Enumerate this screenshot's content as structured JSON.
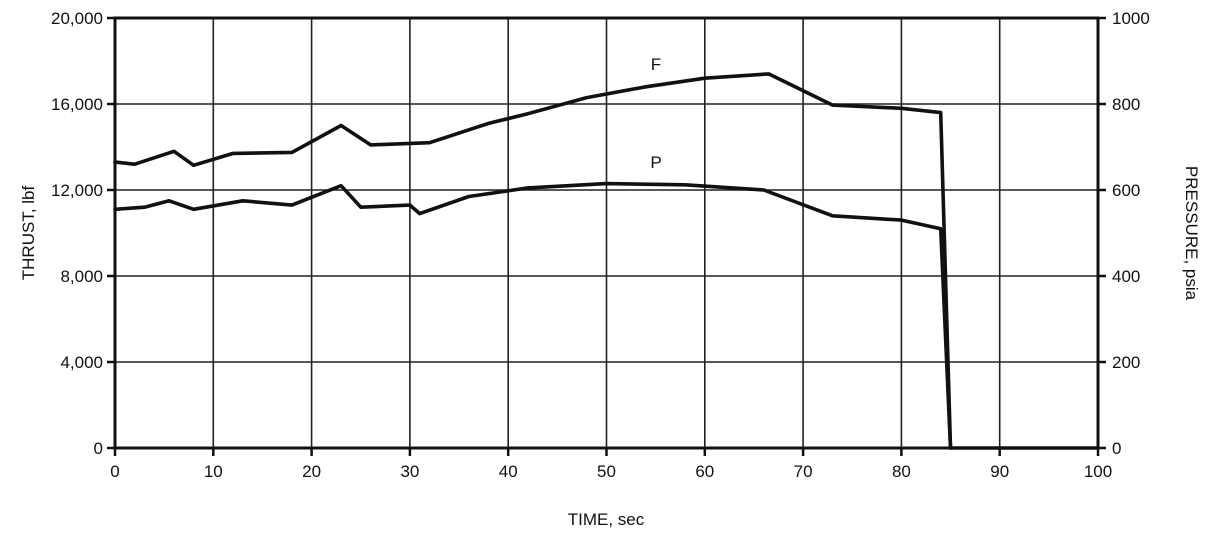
{
  "chart_data": {
    "type": "line",
    "xlabel": "TIME, sec",
    "ylabel_left": "THRUST, lbf",
    "ylabel_right": "PRESSURE, psia",
    "x_ticks": [
      "0",
      "10",
      "20",
      "30",
      "40",
      "50",
      "60",
      "70",
      "80",
      "90",
      "100"
    ],
    "y_left_ticks": [
      "0",
      "4,000",
      "8,000",
      "12,000",
      "16,000",
      "20,000"
    ],
    "y_right_ticks": [
      "0",
      "200",
      "400",
      "600",
      "800",
      "1000"
    ],
    "xlim": [
      0,
      100
    ],
    "ylim_left": [
      0,
      20000
    ],
    "ylim_right": [
      0,
      1000
    ],
    "grid": true,
    "series": [
      {
        "name": "F",
        "axis": "left",
        "x": [
          0,
          2,
          6,
          8,
          12,
          18,
          23,
          26,
          32,
          38,
          42,
          48,
          54,
          60,
          66.5,
          73,
          80,
          84,
          85
        ],
        "y": [
          13300,
          13200,
          13800,
          13150,
          13700,
          13750,
          15000,
          14100,
          14200,
          15100,
          15550,
          16300,
          16800,
          17200,
          17400,
          15950,
          15800,
          15600,
          0
        ]
      },
      {
        "name": "P",
        "axis": "right",
        "x": [
          0,
          3,
          5.5,
          8,
          13,
          18,
          23,
          25,
          30,
          31,
          36,
          42,
          50,
          58,
          66,
          73,
          80,
          84,
          85
        ],
        "y": [
          555,
          560,
          575,
          555,
          575,
          565,
          610,
          560,
          565,
          545,
          585,
          605,
          615,
          612,
          600,
          540,
          530,
          510,
          0
        ]
      }
    ]
  }
}
